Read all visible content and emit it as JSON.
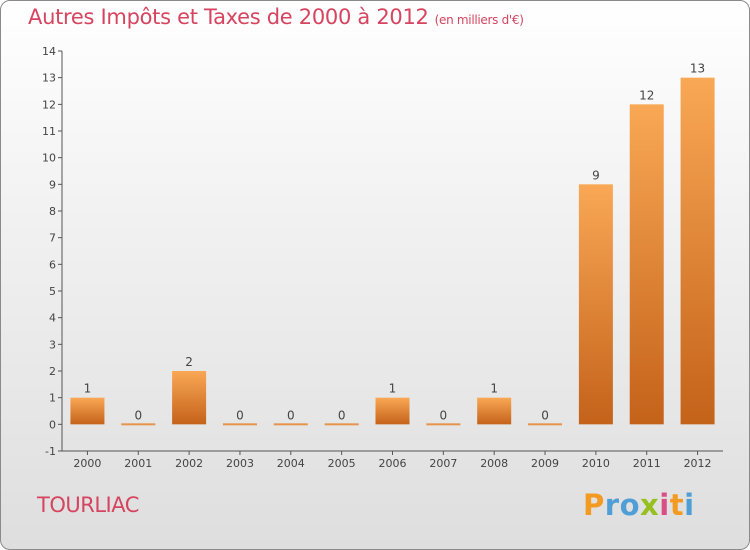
{
  "header": {
    "title": "Autres Impôts et Taxes de 2000 à 2012",
    "unit": "(en milliers d'€)"
  },
  "commune": "TOURLIAC",
  "logo": {
    "text": "Proxiti"
  },
  "colors": {
    "title": "#d6445f",
    "bar_light": "#f7a450",
    "bar_dark": "#c8661a",
    "axis": "#555555"
  },
  "chart_data": {
    "type": "bar",
    "title": "Autres Impôts et Taxes de 2000 à 2012",
    "subtitle": "(en milliers d'€)",
    "categories": [
      "2000",
      "2001",
      "2002",
      "2003",
      "2004",
      "2005",
      "2006",
      "2007",
      "2008",
      "2009",
      "2010",
      "2011",
      "2012"
    ],
    "values": [
      1,
      0,
      2,
      0,
      0,
      0,
      1,
      0,
      1,
      0,
      9,
      12,
      13
    ],
    "data_labels": [
      "1",
      "0",
      "2",
      "0",
      "0",
      "0",
      "1",
      "0",
      "1",
      "0",
      "9",
      "12",
      "13"
    ],
    "yticks": [
      -1,
      0,
      1,
      2,
      3,
      4,
      5,
      6,
      7,
      8,
      9,
      10,
      11,
      12,
      13,
      14
    ],
    "ylim": [
      -1,
      14
    ],
    "xlabel": "",
    "ylabel": "",
    "grid": false
  }
}
